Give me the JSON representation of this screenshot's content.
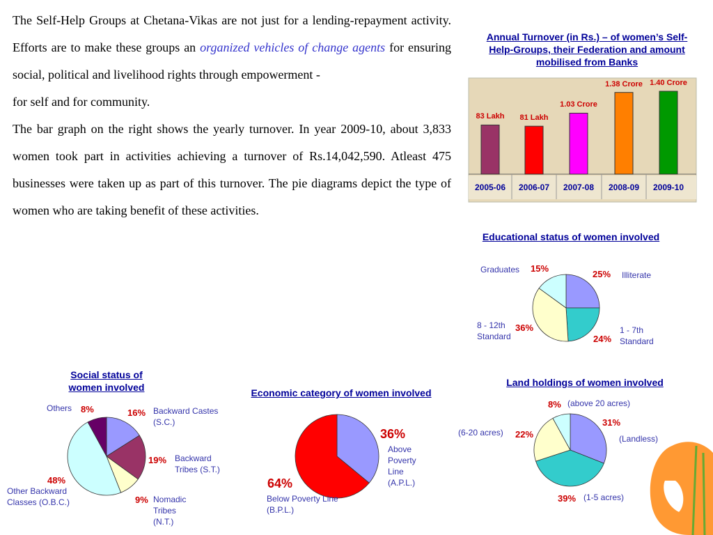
{
  "text": {
    "paragraphs": [
      [
        "The Self-Help Groups at Chetana-Vikas are not just for a lending-repayment activity. Efforts are to make these groups an ",
        "organized vehicles of change agents",
        " for ensuring social, political and livelihood rights through empowerment -",
        "for self and for community."
      ],
      [
        "The bar graph on the right shows the yearly turnover. In year 2009-10, about 3,833 women took part in activities achieving a turnover of Rs.14,042,590. Atleast 475 businesses were taken up as part of this turnover. The pie diagrams depict the type of women who are taking benefit of these activities."
      ]
    ]
  },
  "chart_data": [
    {
      "type": "bar",
      "title": "Annual Turnover (in Rs.) – of women’s Self-Help-Groups, their Federation and amount mobilised from Banks",
      "categories": [
        "2005-06",
        "2006-07",
        "2007-08",
        "2008-09",
        "2009-10"
      ],
      "values": [
        83,
        81,
        103,
        138,
        140
      ],
      "value_labels": [
        "83 Lakh",
        "81 Lakh",
        "1.03 Crore",
        "1.38 Crore",
        "1.40 Crore"
      ],
      "colors": [
        "#993366",
        "#ff0000",
        "#ff00ff",
        "#ff7f00",
        "#009900"
      ]
    },
    {
      "type": "pie",
      "title": "Educational status of women involved",
      "categories": [
        "Illiterate",
        "1 - 7th Standard",
        "8 - 12th Standard",
        "Graduates"
      ],
      "values": [
        25,
        24,
        36,
        15
      ],
      "value_labels": [
        "25%",
        "24%",
        "36%",
        "15%"
      ],
      "colors": [
        "#9999ff",
        "#33cccc",
        "#ffffcc",
        "#ccffff"
      ]
    },
    {
      "type": "pie",
      "title": "Social status of women involved",
      "categories": [
        "Backward Castes (S.C.)",
        "Backward Tribes (S.T.)",
        "Nomadic Tribes (N.T.)",
        "Other Backward Classes (O.B.C.)",
        "Others"
      ],
      "values": [
        16,
        19,
        9,
        48,
        8
      ],
      "value_labels": [
        "16%",
        "19%",
        "9%",
        "48%",
        "8%"
      ],
      "colors": [
        "#9999ff",
        "#993366",
        "#ffffcc",
        "#ccffff",
        "#660066"
      ]
    },
    {
      "type": "pie",
      "title": "Economic category of women involved",
      "categories": [
        "Above Poverty Line (A.P.L.)",
        "Below Poverty Line (B.P.L.)"
      ],
      "values": [
        36,
        64
      ],
      "value_labels": [
        "36%",
        "64%"
      ],
      "colors": [
        "#9999ff",
        "#ff0000"
      ]
    },
    {
      "type": "pie",
      "title": "Land holdings of women involved",
      "categories": [
        "(Landless)",
        "(1-5 acres)",
        "(6-20 acres)",
        "(above 20 acres)"
      ],
      "values": [
        31,
        39,
        22,
        8
      ],
      "value_labels": [
        "31%",
        "39%",
        "22%",
        "8%"
      ],
      "colors": [
        "#9999ff",
        "#33cccc",
        "#ffffcc",
        "#ccffff"
      ]
    }
  ]
}
